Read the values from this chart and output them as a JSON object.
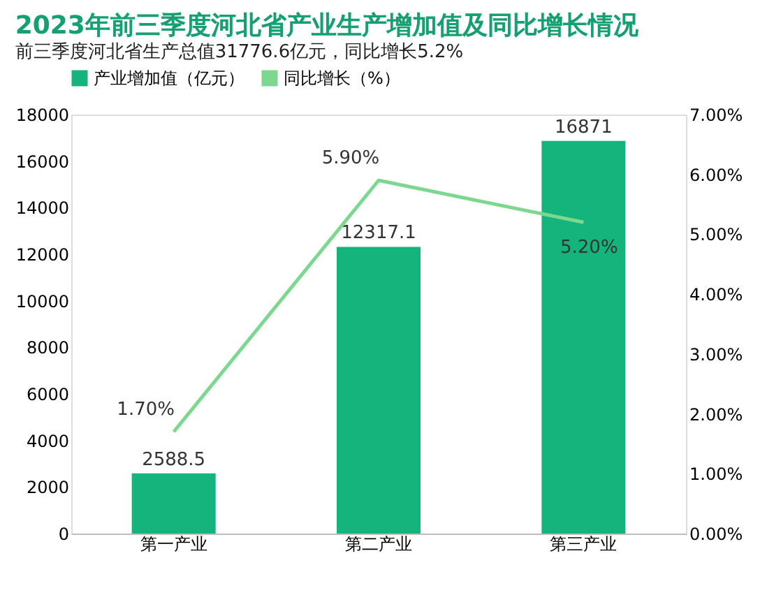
{
  "chart_data": {
    "type": "bar",
    "title": "2023年前三季度河北省产业生产增加值及同比增长情况",
    "subtitle": "前三季度河北省生产总值31776.6亿元，同比增长5.2%",
    "categories": [
      "第一产业",
      "第二产业",
      "第三产业"
    ],
    "series": [
      {
        "name": "产业增加值（亿元）",
        "color": "#14b47c",
        "values": [
          2588.5,
          12317.1,
          16871
        ],
        "value_labels": [
          "2588.5",
          "12317.1",
          "16871"
        ]
      },
      {
        "name": "同比增长（%）",
        "type": "line",
        "axis": "y2",
        "color": "#7dd88f",
        "values": [
          1.7,
          5.9,
          5.2
        ],
        "value_labels": [
          "1.70%",
          "5.90%",
          "5.20%"
        ],
        "marker": "none",
        "line_style": "solid"
      }
    ],
    "ylim": [
      0,
      18000
    ],
    "yticks": [
      0,
      2000,
      4000,
      6000,
      8000,
      10000,
      12000,
      14000,
      16000,
      18000
    ],
    "y2lim": [
      0,
      7
    ],
    "y2ticks": [
      {
        "value": 0,
        "label": "0.00%"
      },
      {
        "value": 1,
        "label": "1.00%"
      },
      {
        "value": 2,
        "label": "2.00%"
      },
      {
        "value": 3,
        "label": "3.00%"
      },
      {
        "value": 4,
        "label": "4.00%"
      },
      {
        "value": 5,
        "label": "5.00%"
      },
      {
        "value": 6,
        "label": "6.00%"
      },
      {
        "value": 7,
        "label": "7.00%"
      }
    ],
    "legend": "top",
    "grid": false
  }
}
